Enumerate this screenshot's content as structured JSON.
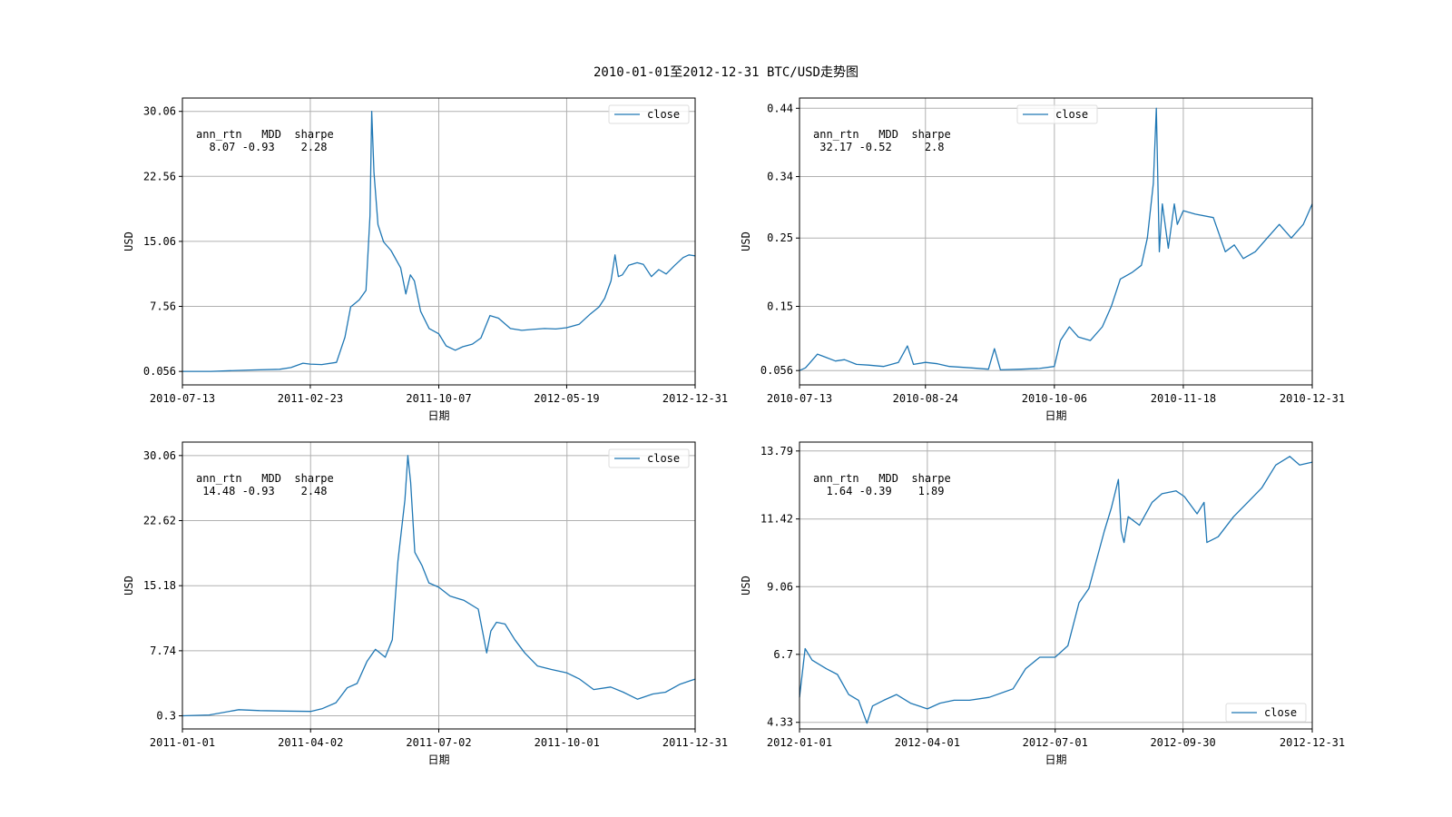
{
  "figure": {
    "title": "2010-01-01至2012-12-31 BTC/USD走势图"
  },
  "colors": {
    "line": "#1f77b4",
    "grid": "#b0b0b0",
    "axes": "#000000"
  },
  "chart_data": [
    {
      "type": "line",
      "xlabel": "日期",
      "ylabel": "USD",
      "x_ticks": [
        "2010-07-13",
        "2011-02-23",
        "2011-10-07",
        "2012-05-19",
        "2012-12-31"
      ],
      "y_ticks": [
        "0.056",
        "7.56",
        "15.06",
        "22.56",
        "30.06"
      ],
      "ylim": [
        -1.5,
        31.6
      ],
      "xlim": [
        "2010-07-13",
        "2012-12-31"
      ],
      "grid": true,
      "legend": {
        "label": "close",
        "position": "top-right"
      },
      "stats": {
        "header": "ann_rtn   MDD  sharpe",
        "row": "  8.07 -0.93    2.28"
      },
      "series": [
        {
          "name": "close",
          "x": [
            "2010-07-13",
            "2010-09-01",
            "2010-11-10",
            "2010-12-31",
            "2011-01-20",
            "2011-02-10",
            "2011-02-23",
            "2011-03-15",
            "2011-04-10",
            "2011-04-25",
            "2011-05-05",
            "2011-05-20",
            "2011-06-01",
            "2011-06-08",
            "2011-06-11",
            "2011-06-15",
            "2011-06-22",
            "2011-07-02",
            "2011-07-15",
            "2011-08-01",
            "2011-08-10",
            "2011-08-18",
            "2011-08-25",
            "2011-09-05",
            "2011-09-20",
            "2011-10-07",
            "2011-10-20",
            "2011-11-05",
            "2011-11-18",
            "2011-12-05",
            "2011-12-20",
            "2012-01-05",
            "2012-01-20",
            "2012-02-10",
            "2012-03-01",
            "2012-03-20",
            "2012-04-10",
            "2012-04-30",
            "2012-05-19",
            "2012-06-10",
            "2012-06-30",
            "2012-07-15",
            "2012-07-25",
            "2012-08-05",
            "2012-08-12",
            "2012-08-18",
            "2012-08-25",
            "2012-09-05",
            "2012-09-20",
            "2012-10-01",
            "2012-10-15",
            "2012-10-28",
            "2012-11-10",
            "2012-11-25",
            "2012-12-10",
            "2012-12-20",
            "2012-12-31"
          ],
          "values": [
            0.06,
            0.06,
            0.22,
            0.3,
            0.5,
            1.0,
            0.9,
            0.85,
            1.1,
            4.0,
            7.5,
            8.3,
            9.4,
            18.0,
            30.06,
            23.0,
            17.0,
            15.0,
            14.0,
            12.0,
            9.0,
            11.2,
            10.5,
            7.0,
            5.0,
            4.4,
            3.0,
            2.5,
            2.9,
            3.2,
            3.9,
            6.5,
            6.2,
            5.0,
            4.8,
            4.9,
            5.0,
            4.95,
            5.1,
            5.5,
            6.7,
            7.5,
            8.5,
            10.5,
            13.5,
            11.0,
            11.2,
            12.3,
            12.6,
            12.4,
            11.0,
            11.8,
            11.3,
            12.3,
            13.2,
            13.5,
            13.4
          ]
        }
      ]
    },
    {
      "type": "line",
      "xlabel": "日期",
      "ylabel": "USD",
      "x_ticks": [
        "2010-07-13",
        "2010-08-24",
        "2010-10-06",
        "2010-11-18",
        "2010-12-31"
      ],
      "y_ticks": [
        "0.056",
        "0.15",
        "0.25",
        "0.34",
        "0.44"
      ],
      "ylim": [
        0.035,
        0.455
      ],
      "xlim": [
        "2010-07-13",
        "2010-12-31"
      ],
      "grid": true,
      "legend": {
        "label": "close",
        "position": "top-center"
      },
      "stats": {
        "header": "ann_rtn   MDD  sharpe",
        "row": " 32.17 -0.52     2.8"
      },
      "series": [
        {
          "name": "close",
          "x": [
            "2010-07-13",
            "2010-07-15",
            "2010-07-17",
            "2010-07-19",
            "2010-07-22",
            "2010-07-25",
            "2010-07-28",
            "2010-08-01",
            "2010-08-05",
            "2010-08-10",
            "2010-08-15",
            "2010-08-18",
            "2010-08-20",
            "2010-08-24",
            "2010-08-28",
            "2010-09-01",
            "2010-09-08",
            "2010-09-14",
            "2010-09-16",
            "2010-09-18",
            "2010-09-25",
            "2010-10-01",
            "2010-10-06",
            "2010-10-08",
            "2010-10-11",
            "2010-10-14",
            "2010-10-18",
            "2010-10-22",
            "2010-10-25",
            "2010-10-28",
            "2010-11-01",
            "2010-11-04",
            "2010-11-06",
            "2010-11-08",
            "2010-11-09",
            "2010-11-10",
            "2010-11-11",
            "2010-11-13",
            "2010-11-15",
            "2010-11-16",
            "2010-11-18",
            "2010-11-22",
            "2010-11-28",
            "2010-12-02",
            "2010-12-05",
            "2010-12-08",
            "2010-12-12",
            "2010-12-16",
            "2010-12-20",
            "2010-12-24",
            "2010-12-28",
            "2010-12-31"
          ],
          "values": [
            0.056,
            0.06,
            0.07,
            0.08,
            0.075,
            0.07,
            0.072,
            0.065,
            0.064,
            0.062,
            0.068,
            0.092,
            0.065,
            0.068,
            0.066,
            0.062,
            0.06,
            0.058,
            0.088,
            0.057,
            0.058,
            0.059,
            0.062,
            0.1,
            0.12,
            0.105,
            0.1,
            0.12,
            0.15,
            0.19,
            0.2,
            0.21,
            0.25,
            0.33,
            0.44,
            0.23,
            0.3,
            0.235,
            0.3,
            0.27,
            0.29,
            0.285,
            0.28,
            0.23,
            0.24,
            0.22,
            0.23,
            0.25,
            0.27,
            0.25,
            0.27,
            0.3
          ]
        }
      ]
    },
    {
      "type": "line",
      "xlabel": "日期",
      "ylabel": "USD",
      "x_ticks": [
        "2011-01-01",
        "2011-04-02",
        "2011-07-02",
        "2011-10-01",
        "2011-12-31"
      ],
      "y_ticks": [
        "0.3",
        "7.74",
        "15.18",
        "22.62",
        "30.06"
      ],
      "ylim": [
        -1.2,
        31.6
      ],
      "xlim": [
        "2011-01-01",
        "2011-12-31"
      ],
      "grid": true,
      "legend": {
        "label": "close",
        "position": "top-right"
      },
      "stats": {
        "header": "ann_rtn   MDD  sharpe",
        "row": " 14.48 -0.93    2.48"
      },
      "series": [
        {
          "name": "close",
          "x": [
            "2011-01-01",
            "2011-01-20",
            "2011-02-10",
            "2011-02-25",
            "2011-03-15",
            "2011-04-02",
            "2011-04-10",
            "2011-04-20",
            "2011-04-28",
            "2011-05-05",
            "2011-05-12",
            "2011-05-18",
            "2011-05-25",
            "2011-05-30",
            "2011-06-03",
            "2011-06-08",
            "2011-06-10",
            "2011-06-12",
            "2011-06-15",
            "2011-06-20",
            "2011-06-25",
            "2011-07-02",
            "2011-07-10",
            "2011-07-20",
            "2011-07-30",
            "2011-08-05",
            "2011-08-08",
            "2011-08-12",
            "2011-08-18",
            "2011-08-25",
            "2011-09-01",
            "2011-09-10",
            "2011-09-20",
            "2011-10-01",
            "2011-10-10",
            "2011-10-20",
            "2011-11-01",
            "2011-11-10",
            "2011-11-20",
            "2011-12-01",
            "2011-12-10",
            "2011-12-20",
            "2011-12-31"
          ],
          "values": [
            0.3,
            0.4,
            1.0,
            0.9,
            0.85,
            0.8,
            1.1,
            1.8,
            3.5,
            4.0,
            6.5,
            7.9,
            7.0,
            9.0,
            18.0,
            25.0,
            30.06,
            27.0,
            19.0,
            17.5,
            15.5,
            15.0,
            14.0,
            13.5,
            12.5,
            7.5,
            10.0,
            11.0,
            10.8,
            9.0,
            7.5,
            6.0,
            5.6,
            5.2,
            4.5,
            3.3,
            3.6,
            3.0,
            2.2,
            2.8,
            3.0,
            3.9,
            4.5
          ]
        }
      ]
    },
    {
      "type": "line",
      "xlabel": "日期",
      "ylabel": "USD",
      "x_ticks": [
        "2012-01-01",
        "2012-04-01",
        "2012-07-01",
        "2012-09-30",
        "2012-12-31"
      ],
      "y_ticks": [
        "4.33",
        "6.7",
        "9.06",
        "11.42",
        "13.79"
      ],
      "ylim": [
        4.1,
        14.1
      ],
      "xlim": [
        "2012-01-01",
        "2012-12-31"
      ],
      "grid": true,
      "legend": {
        "label": "close",
        "position": "lower-right"
      },
      "stats": {
        "header": "ann_rtn   MDD  sharpe",
        "row": "  1.64 -0.39    1.89"
      },
      "series": [
        {
          "name": "close",
          "x": [
            "2012-01-01",
            "2012-01-05",
            "2012-01-10",
            "2012-01-20",
            "2012-01-28",
            "2012-02-05",
            "2012-02-12",
            "2012-02-18",
            "2012-02-22",
            "2012-03-01",
            "2012-03-10",
            "2012-03-20",
            "2012-04-01",
            "2012-04-10",
            "2012-04-20",
            "2012-05-01",
            "2012-05-15",
            "2012-06-01",
            "2012-06-10",
            "2012-06-20",
            "2012-07-01",
            "2012-07-10",
            "2012-07-18",
            "2012-07-25",
            "2012-08-05",
            "2012-08-10",
            "2012-08-15",
            "2012-08-17",
            "2012-08-19",
            "2012-08-22",
            "2012-08-30",
            "2012-09-08",
            "2012-09-15",
            "2012-09-25",
            "2012-10-01",
            "2012-10-10",
            "2012-10-15",
            "2012-10-17",
            "2012-10-25",
            "2012-11-05",
            "2012-11-15",
            "2012-11-25",
            "2012-12-05",
            "2012-12-15",
            "2012-12-22",
            "2012-12-31"
          ],
          "values": [
            5.2,
            6.9,
            6.5,
            6.2,
            6.0,
            5.3,
            5.1,
            4.3,
            4.9,
            5.1,
            5.3,
            5.0,
            4.8,
            5.0,
            5.1,
            5.1,
            5.2,
            5.5,
            6.2,
            6.6,
            6.6,
            7.0,
            8.5,
            9.0,
            11.0,
            11.8,
            12.8,
            11.0,
            10.6,
            11.5,
            11.2,
            12.0,
            12.3,
            12.4,
            12.2,
            11.6,
            12.0,
            10.6,
            10.8,
            11.5,
            12.0,
            12.5,
            13.3,
            13.6,
            13.3,
            13.4
          ]
        }
      ]
    }
  ]
}
